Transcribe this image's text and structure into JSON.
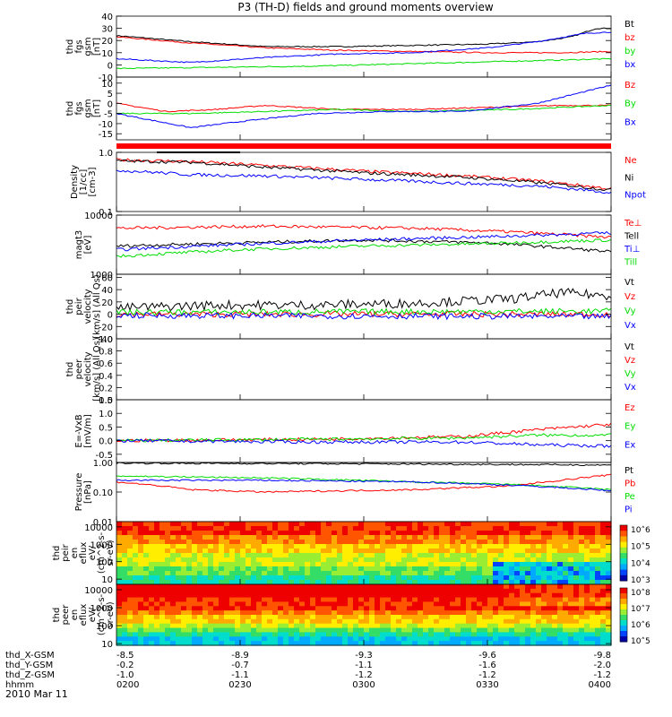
{
  "title": "P3 (TH-D) fields and ground moments overview",
  "colors": {
    "black": "#000000",
    "red": "#ff0000",
    "green": "#00dd00",
    "blue": "#0000ff",
    "accent_bar": "#ff0000"
  },
  "chart_data": [
    {
      "type": "line",
      "id": "fgs",
      "ylabel": [
        "thd",
        "fgs",
        "gsm",
        "[nT]"
      ],
      "ylim": [
        -10,
        40
      ],
      "yticks": [
        {
          "v": 40,
          "t": "40"
        },
        {
          "v": 30,
          "t": "30"
        },
        {
          "v": 20,
          "t": "20"
        },
        {
          "v": 10,
          "t": "10"
        },
        {
          "v": 0,
          "t": "0"
        },
        {
          "v": -10,
          "t": "-10"
        }
      ],
      "series": [
        {
          "name": "Bt",
          "color": "red_black",
          "c": "#000000",
          "pts": [
            [
              0,
              24
            ],
            [
              0.15,
              19
            ],
            [
              0.3,
              15
            ],
            [
              0.45,
              15
            ],
            [
              0.6,
              16
            ],
            [
              0.75,
              17
            ],
            [
              0.85,
              19
            ],
            [
              0.92,
              23
            ],
            [
              0.97,
              30
            ],
            [
              1,
              30
            ]
          ]
        },
        {
          "name": "bz",
          "c": "#ff0000",
          "pts": [
            [
              0,
              23
            ],
            [
              0.15,
              18
            ],
            [
              0.3,
              14
            ],
            [
              0.45,
              12
            ],
            [
              0.6,
              11
            ],
            [
              0.75,
              10
            ],
            [
              0.9,
              10
            ],
            [
              1,
              11
            ]
          ]
        },
        {
          "name": "by",
          "c": "#00dd00",
          "pts": [
            [
              0,
              -3
            ],
            [
              0.2,
              -2
            ],
            [
              0.4,
              -1
            ],
            [
              0.6,
              1
            ],
            [
              0.8,
              3
            ],
            [
              0.9,
              4
            ],
            [
              1,
              5
            ]
          ]
        },
        {
          "name": "bx",
          "c": "#0000ff",
          "pts": [
            [
              0,
              5
            ],
            [
              0.15,
              2
            ],
            [
              0.3,
              6
            ],
            [
              0.45,
              9
            ],
            [
              0.6,
              10
            ],
            [
              0.75,
              14
            ],
            [
              0.85,
              19
            ],
            [
              0.95,
              26
            ],
            [
              1,
              27
            ]
          ]
        }
      ]
    },
    {
      "type": "line",
      "id": "fgs2",
      "ylabel": [
        "thd",
        "fgs",
        "gsm",
        "[nT]"
      ],
      "ylim": [
        -18,
        13
      ],
      "yticks": [
        {
          "v": 10,
          "t": "10"
        },
        {
          "v": 5,
          "t": "5"
        },
        {
          "v": 0,
          "t": "0"
        },
        {
          "v": -5,
          "t": "-5"
        },
        {
          "v": -10,
          "t": "-10"
        },
        {
          "v": -15,
          "t": "-15"
        }
      ],
      "series": [
        {
          "name": "Bz",
          "c": "#ff0000",
          "pts": [
            [
              0,
              0
            ],
            [
              0.1,
              -4
            ],
            [
              0.2,
              -3
            ],
            [
              0.3,
              -1
            ],
            [
              0.45,
              -3
            ],
            [
              0.6,
              -3
            ],
            [
              0.75,
              -2
            ],
            [
              0.9,
              -1
            ],
            [
              1,
              -1
            ]
          ]
        },
        {
          "name": "By",
          "c": "#00dd00",
          "pts": [
            [
              0,
              -5
            ],
            [
              0.15,
              -5
            ],
            [
              0.3,
              -4
            ],
            [
              0.45,
              -3
            ],
            [
              0.6,
              -4
            ],
            [
              0.8,
              -3
            ],
            [
              0.9,
              -2
            ],
            [
              1,
              -1
            ]
          ]
        },
        {
          "name": "Bx",
          "c": "#0000ff",
          "pts": [
            [
              0,
              -5
            ],
            [
              0.15,
              -12
            ],
            [
              0.25,
              -9
            ],
            [
              0.4,
              -5
            ],
            [
              0.55,
              -4
            ],
            [
              0.7,
              -4
            ],
            [
              0.85,
              0
            ],
            [
              0.95,
              6
            ],
            [
              1,
              9
            ]
          ]
        }
      ]
    },
    {
      "type": "line",
      "id": "density",
      "ylabel": [
        "Density",
        "[1/cc]",
        "[cm-3]"
      ],
      "ylog": true,
      "ylim": [
        0.1,
        1.0
      ],
      "yticks": [
        {
          "v": 1.0,
          "t": "1.0"
        },
        {
          "v": 0.1,
          "t": "0.1"
        }
      ],
      "series": [
        {
          "name": "Ne",
          "c": "#ff0000",
          "pts": [
            [
              0,
              0.75
            ],
            [
              0.15,
              0.7
            ],
            [
              0.3,
              0.6
            ],
            [
              0.5,
              0.48
            ],
            [
              0.7,
              0.4
            ],
            [
              0.85,
              0.33
            ],
            [
              1,
              0.24
            ]
          ]
        },
        {
          "name": "Ni",
          "c": "#000000",
          "pts": [
            [
              0,
              0.72
            ],
            [
              0.15,
              0.68
            ],
            [
              0.3,
              0.56
            ],
            [
              0.5,
              0.45
            ],
            [
              0.7,
              0.38
            ],
            [
              0.85,
              0.31
            ],
            [
              1,
              0.23
            ]
          ]
        },
        {
          "name": "Npot",
          "c": "#0000ff",
          "pts": [
            [
              0,
              0.5
            ],
            [
              0.15,
              0.42
            ],
            [
              0.3,
              0.4
            ],
            [
              0.5,
              0.35
            ],
            [
              0.7,
              0.3
            ],
            [
              0.85,
              0.27
            ],
            [
              1,
              0.21
            ]
          ]
        }
      ]
    },
    {
      "type": "line",
      "id": "temp",
      "ylabel": [
        "magt3",
        "[eV]"
      ],
      "ylog": true,
      "ylim": [
        1000,
        10000
      ],
      "yticks": [
        {
          "v": 10000,
          "t": "10000"
        },
        {
          "v": 1000,
          "t": "1000"
        }
      ],
      "series": [
        {
          "name": "Te⊥",
          "c": "#ff0000",
          "pts": [
            [
              0,
              6000
            ],
            [
              0.3,
              6500
            ],
            [
              0.6,
              6000
            ],
            [
              0.8,
              5200
            ],
            [
              1,
              4200
            ]
          ]
        },
        {
          "name": "Tell",
          "c": "#000000",
          "pts": [
            [
              0,
              3000
            ],
            [
              0.25,
              3400
            ],
            [
              0.5,
              3800
            ],
            [
              0.75,
              3400
            ],
            [
              1,
              2400
            ]
          ]
        },
        {
          "name": "Ti⊥",
          "c": "#0000ff",
          "pts": [
            [
              0,
              2600
            ],
            [
              0.25,
              3200
            ],
            [
              0.5,
              3800
            ],
            [
              0.75,
              4300
            ],
            [
              1,
              5000
            ]
          ]
        },
        {
          "name": "Till",
          "c": "#00dd00",
          "pts": [
            [
              0,
              2000
            ],
            [
              0.25,
              2600
            ],
            [
              0.5,
              3000
            ],
            [
              0.75,
              3300
            ],
            [
              1,
              3800
            ]
          ]
        }
      ]
    },
    {
      "type": "line",
      "id": "peir_vel",
      "ylabel": [
        "thd",
        "peir",
        "velocity",
        "[km/s] (All Qs)"
      ],
      "ylim": [
        -40,
        65
      ],
      "yticks": [
        {
          "v": 60,
          "t": "60"
        },
        {
          "v": 40,
          "t": "40"
        },
        {
          "v": 20,
          "t": "20"
        },
        {
          "v": 0,
          "t": "0"
        },
        {
          "v": -20,
          "t": "-20"
        },
        {
          "v": -40,
          "t": "-40"
        }
      ],
      "series": [
        {
          "name": "Vt",
          "c": "#000000",
          "pts": [
            [
              0,
              10
            ],
            [
              0.2,
              15
            ],
            [
              0.4,
              15
            ],
            [
              0.6,
              18
            ],
            [
              0.8,
              25
            ],
            [
              0.9,
              35
            ],
            [
              1,
              30
            ]
          ]
        },
        {
          "name": "Vz",
          "c": "#ff0000",
          "pts": [
            [
              0,
              0
            ],
            [
              0.5,
              0
            ],
            [
              1,
              0
            ]
          ]
        },
        {
          "name": "Vy",
          "c": "#00dd00",
          "pts": [
            [
              0,
              3
            ],
            [
              0.5,
              4
            ],
            [
              1,
              5
            ]
          ]
        },
        {
          "name": "Vx",
          "c": "#0000ff",
          "pts": [
            [
              0,
              -2
            ],
            [
              0.5,
              -3
            ],
            [
              1,
              -4
            ]
          ]
        }
      ]
    },
    {
      "type": "line",
      "id": "peer_vel",
      "ylabel": [
        "thd",
        "peer",
        "velocity",
        "[km/s] (All Qs)"
      ],
      "ylim": [
        0,
        1
      ],
      "yticks": [
        {
          "v": 1.0,
          "t": "1.0"
        },
        {
          "v": 0.8,
          "t": "0.8"
        },
        {
          "v": 0.6,
          "t": "0.6"
        },
        {
          "v": 0.4,
          "t": "0.4"
        },
        {
          "v": 0.2,
          "t": "0.2"
        },
        {
          "v": 0.0,
          "t": "0.0"
        }
      ],
      "series": [
        {
          "name": "Vt",
          "c": "#000000",
          "pts": []
        },
        {
          "name": "Vz",
          "c": "#ff0000",
          "pts": []
        },
        {
          "name": "Vy",
          "c": "#00dd00",
          "pts": []
        },
        {
          "name": "Vx",
          "c": "#0000ff",
          "pts": []
        }
      ]
    },
    {
      "type": "line",
      "id": "efield",
      "ylabel": [
        "E=-VxB",
        "[mV/m]"
      ],
      "ylim": [
        -0.8,
        1.5
      ],
      "yticks": [
        {
          "v": 1.5,
          "t": "1.5"
        },
        {
          "v": 1.0,
          "t": "1.0"
        },
        {
          "v": 0.5,
          "t": "0.5"
        },
        {
          "v": 0.0,
          "t": "0.0"
        },
        {
          "v": -0.5,
          "t": "-0.5"
        }
      ],
      "series": [
        {
          "name": "Ez",
          "c": "#ff0000",
          "pts": [
            [
              0,
              0
            ],
            [
              0.4,
              0.05
            ],
            [
              0.7,
              0.15
            ],
            [
              0.85,
              0.4
            ],
            [
              1,
              0.6
            ]
          ]
        },
        {
          "name": "Ey",
          "c": "#00dd00",
          "pts": [
            [
              0,
              0
            ],
            [
              0.4,
              0.05
            ],
            [
              0.7,
              0.1
            ],
            [
              0.85,
              0.2
            ],
            [
              1,
              0.2
            ]
          ]
        },
        {
          "name": "Ex",
          "c": "#0000ff",
          "pts": [
            [
              0,
              0
            ],
            [
              0.4,
              -0.05
            ],
            [
              0.7,
              -0.05
            ],
            [
              0.85,
              -0.15
            ],
            [
              1,
              -0.2
            ]
          ]
        }
      ]
    },
    {
      "type": "line",
      "id": "pressure",
      "ylabel": [
        "Pressure",
        "[nPa]"
      ],
      "ylog": true,
      "ylim": [
        0.01,
        1.0
      ],
      "yticks": [
        {
          "v": 1.0,
          "t": "1.00"
        },
        {
          "v": 0.1,
          "t": "0.10"
        },
        {
          "v": 0.01,
          "t": "0.01"
        }
      ],
      "series": [
        {
          "name": "Pt",
          "c": "#000000",
          "pts": [
            [
              0,
              0.95
            ],
            [
              0.5,
              0.9
            ],
            [
              1,
              0.82
            ]
          ]
        },
        {
          "name": "Pb",
          "c": "#ff0000",
          "pts": [
            [
              0,
              0.22
            ],
            [
              0.15,
              0.12
            ],
            [
              0.3,
              0.1
            ],
            [
              0.6,
              0.12
            ],
            [
              0.8,
              0.16
            ],
            [
              0.9,
              0.25
            ],
            [
              1,
              0.38
            ]
          ]
        },
        {
          "name": "Pe",
          "c": "#00dd00",
          "pts": [
            [
              0,
              0.35
            ],
            [
              0.3,
              0.3
            ],
            [
              0.6,
              0.22
            ],
            [
              0.8,
              0.18
            ],
            [
              1,
              0.12
            ]
          ]
        },
        {
          "name": "Pi",
          "c": "#0000ff",
          "pts": [
            [
              0,
              0.25
            ],
            [
              0.3,
              0.25
            ],
            [
              0.6,
              0.22
            ],
            [
              0.8,
              0.17
            ],
            [
              1,
              0.11
            ]
          ]
        }
      ]
    },
    {
      "type": "heatmap",
      "id": "peir_eflux",
      "ylabel": [
        "thd",
        "peir",
        "en",
        "eflux",
        "eV/",
        "(cm^2-s-",
        "sr-eV)"
      ],
      "ylog": true,
      "ylim": [
        5,
        20000
      ],
      "yticks": [
        {
          "v": 10000,
          "t": "10000"
        },
        {
          "v": 1000,
          "t": "1000"
        },
        {
          "v": 100,
          "t": "100"
        },
        {
          "v": 10,
          "t": "10"
        }
      ],
      "colorbar": {
        "labels": [
          "10^6",
          "10^5",
          "10^4",
          "10^3"
        ]
      }
    },
    {
      "type": "heatmap",
      "id": "peer_eflux",
      "ylabel": [
        "thd",
        "peer",
        "en",
        "eflux",
        "eV/",
        "(cm^2-s-",
        "sr-eV)"
      ],
      "ylog": true,
      "ylim": [
        8,
        20000
      ],
      "yticks": [
        {
          "v": 10000,
          "t": "10000"
        },
        {
          "v": 1000,
          "t": "1000"
        },
        {
          "v": 100,
          "t": "100"
        },
        {
          "v": 10,
          "t": "10"
        }
      ],
      "colorbar": {
        "labels": [
          "10^8",
          "10^7",
          "10^6",
          "10^5"
        ]
      }
    }
  ],
  "xaxis": {
    "rows": [
      {
        "label": "thd_X-GSM",
        "values": [
          "-8.5",
          "-8.9",
          "-9.3",
          "-9.6",
          "-9.8"
        ]
      },
      {
        "label": "thd_Y-GSM",
        "values": [
          "-0.2",
          "-0.7",
          "-1.1",
          "-1.6",
          "-2.0"
        ]
      },
      {
        "label": "thd_Z-GSM",
        "values": [
          "-1.0",
          "-1.1",
          "-1.2",
          "-1.2",
          "-1.2"
        ]
      },
      {
        "label": "hhmm",
        "values": [
          "0200",
          "0230",
          "0300",
          "0330",
          "0400"
        ]
      }
    ],
    "date": "2010 Mar 11"
  }
}
